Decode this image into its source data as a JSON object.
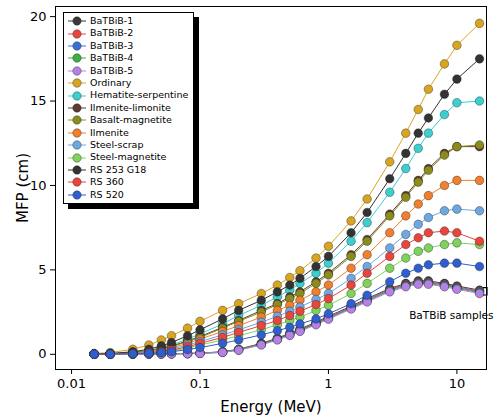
{
  "chart_data": {
    "type": "line",
    "x_label": "Energy (MeV)",
    "y_label": "MFP (cm)",
    "log": "x",
    "xlim": [
      0.0075,
      17
    ],
    "xticks": [
      0.01,
      0.1,
      1,
      10
    ],
    "ylim": [
      -0.9,
      20.6
    ],
    "yticks": [
      0,
      5,
      10,
      15,
      20
    ],
    "grid": false,
    "legend": "top-left",
    "marker": "circle",
    "x": [
      0.015,
      0.02,
      0.03,
      0.04,
      0.05,
      0.06,
      0.08,
      0.1,
      0.15,
      0.2,
      0.3,
      0.4,
      0.5,
      0.6,
      0.8,
      1,
      1.5,
      2,
      3,
      4,
      5,
      6,
      8,
      10,
      15
    ],
    "series": [
      {
        "name": "BaTBiB-1",
        "color": "#3a3a3a",
        "values": [
          0,
          0,
          0.01,
          0.02,
          0.03,
          0.04,
          0.05,
          0.07,
          0.15,
          0.3,
          0.65,
          0.95,
          1.25,
          1.5,
          1.9,
          2.25,
          2.85,
          3.3,
          3.9,
          4.2,
          4.35,
          4.35,
          4.2,
          4.05,
          3.8
        ]
      },
      {
        "name": "BaTBiB-2",
        "color": "#e8453c",
        "values": [
          0,
          0,
          0.01,
          0.02,
          0.03,
          0.03,
          0.05,
          0.07,
          0.14,
          0.28,
          0.62,
          0.92,
          1.2,
          1.45,
          1.85,
          2.2,
          2.8,
          3.25,
          3.85,
          4.15,
          4.3,
          4.3,
          4.15,
          4.0,
          3.75
        ]
      },
      {
        "name": "BaTBiB-3",
        "color": "#3a6fd8",
        "values": [
          0,
          0,
          0.01,
          0.01,
          0.02,
          0.03,
          0.04,
          0.06,
          0.13,
          0.27,
          0.6,
          0.9,
          1.18,
          1.42,
          1.82,
          2.15,
          2.75,
          3.2,
          3.8,
          4.1,
          4.25,
          4.25,
          4.1,
          3.95,
          3.7
        ]
      },
      {
        "name": "BaTBiB-4",
        "color": "#3cb043",
        "values": [
          0,
          0,
          0.01,
          0.01,
          0.02,
          0.03,
          0.04,
          0.06,
          0.12,
          0.26,
          0.58,
          0.88,
          1.15,
          1.4,
          1.8,
          2.12,
          2.72,
          3.15,
          3.75,
          4.05,
          4.2,
          4.2,
          4.05,
          3.9,
          3.65
        ]
      },
      {
        "name": "BaTBiB-5",
        "color": "#b681e6",
        "values": [
          0,
          0,
          0,
          0.01,
          0.02,
          0.02,
          0.03,
          0.05,
          0.11,
          0.24,
          0.55,
          0.85,
          1.12,
          1.36,
          1.75,
          2.08,
          2.68,
          3.1,
          3.7,
          4.0,
          4.15,
          4.15,
          4.0,
          3.85,
          3.6
        ]
      },
      {
        "name": "Ordinary",
        "color": "#d9a521",
        "values": [
          0.05,
          0.1,
          0.3,
          0.55,
          0.85,
          1.1,
          1.55,
          1.95,
          2.6,
          3.0,
          3.6,
          4.1,
          4.55,
          4.95,
          5.7,
          6.4,
          7.9,
          9.2,
          11.4,
          13.1,
          14.5,
          15.7,
          17.2,
          18.3,
          19.6
        ]
      },
      {
        "name": "Hematite-serpentine",
        "color": "#3ccfcf",
        "values": [
          0.02,
          0.04,
          0.12,
          0.25,
          0.4,
          0.55,
          0.9,
          1.2,
          1.8,
          2.3,
          2.9,
          3.4,
          3.8,
          4.2,
          4.8,
          5.4,
          6.7,
          7.8,
          9.6,
          11.0,
          12.2,
          13.1,
          14.2,
          14.9,
          15.0
        ]
      },
      {
        "name": "Ilmenite-limonite",
        "color": "#5e3b30",
        "values": [
          0.01,
          0.03,
          0.1,
          0.2,
          0.33,
          0.48,
          0.8,
          1.05,
          1.6,
          2.0,
          2.6,
          3.0,
          3.4,
          3.7,
          4.3,
          4.8,
          5.9,
          6.8,
          8.3,
          9.4,
          10.3,
          11.0,
          11.9,
          12.3,
          12.3
        ]
      },
      {
        "name": "Basalt-magnetite",
        "color": "#8c8c1c",
        "values": [
          0.01,
          0.03,
          0.1,
          0.2,
          0.3,
          0.45,
          0.75,
          1.0,
          1.55,
          1.95,
          2.5,
          2.95,
          3.3,
          3.6,
          4.2,
          4.7,
          5.8,
          6.7,
          8.2,
          9.3,
          10.2,
          10.9,
          11.8,
          12.3,
          12.4
        ]
      },
      {
        "name": "Ilmenite",
        "color": "#f07f2f",
        "values": [
          0.01,
          0.02,
          0.07,
          0.15,
          0.25,
          0.38,
          0.65,
          0.9,
          1.35,
          1.7,
          2.2,
          2.6,
          2.9,
          3.2,
          3.7,
          4.1,
          5.1,
          5.9,
          7.2,
          8.2,
          8.9,
          9.4,
          10.0,
          10.3,
          10.3
        ]
      },
      {
        "name": "Steel-scrap",
        "color": "#6fa8e0",
        "values": [
          0.01,
          0.02,
          0.06,
          0.12,
          0.2,
          0.3,
          0.55,
          0.75,
          1.15,
          1.45,
          1.9,
          2.25,
          2.55,
          2.8,
          3.25,
          3.6,
          4.5,
          5.2,
          6.3,
          7.1,
          7.7,
          8.1,
          8.5,
          8.6,
          8.5
        ]
      },
      {
        "name": "Steel-magnetite",
        "color": "#7fd35c",
        "values": [
          0.01,
          0.01,
          0.04,
          0.08,
          0.14,
          0.2,
          0.37,
          0.55,
          0.85,
          1.1,
          1.45,
          1.75,
          2.0,
          2.2,
          2.6,
          2.9,
          3.6,
          4.2,
          5.1,
          5.7,
          6.1,
          6.3,
          6.5,
          6.6,
          6.5
        ]
      },
      {
        "name": "RS 253 G18",
        "color": "#333333",
        "values": [
          0.02,
          0.05,
          0.15,
          0.3,
          0.5,
          0.7,
          1.1,
          1.45,
          2.1,
          2.6,
          3.2,
          3.7,
          4.1,
          4.5,
          5.2,
          5.8,
          7.2,
          8.4,
          10.4,
          11.9,
          13.1,
          14.0,
          15.4,
          16.3,
          17.5
        ]
      },
      {
        "name": "RS 360",
        "color": "#e8453c",
        "values": [
          0.01,
          0.02,
          0.05,
          0.1,
          0.17,
          0.25,
          0.45,
          0.65,
          1.0,
          1.3,
          1.7,
          2.0,
          2.3,
          2.55,
          2.95,
          3.3,
          4.1,
          4.8,
          5.8,
          6.5,
          6.9,
          7.2,
          7.3,
          7.2,
          6.7
        ]
      },
      {
        "name": "RS 520",
        "color": "#2f5fcf",
        "values": [
          0.01,
          0.01,
          0.03,
          0.06,
          0.1,
          0.15,
          0.28,
          0.4,
          0.65,
          0.85,
          1.15,
          1.4,
          1.6,
          1.8,
          2.1,
          2.4,
          3.0,
          3.5,
          4.3,
          4.8,
          5.1,
          5.3,
          5.4,
          5.4,
          5.2
        ]
      }
    ],
    "annotations": [
      {
        "text": "BaTBiB samples",
        "series": [
          "BaTBiB-1",
          "BaTBiB-2",
          "BaTBiB-3",
          "BaTBiB-4",
          "BaTBiB-5"
        ]
      }
    ]
  }
}
